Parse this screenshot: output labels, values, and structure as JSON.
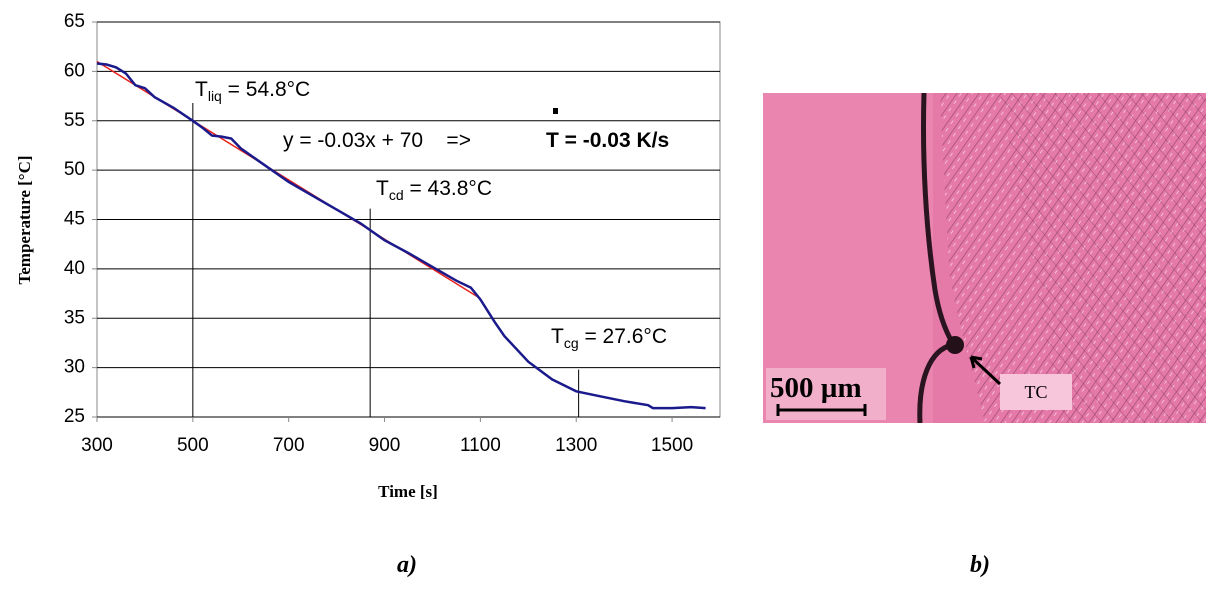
{
  "chart_data": {
    "type": "line",
    "ylabel": "Temperature [°C]",
    "xlabel": "Time [s]",
    "xlim": [
      300,
      1600
    ],
    "xticks": [
      300,
      500,
      700,
      900,
      1100,
      1300,
      1500
    ],
    "ylim": [
      25,
      65
    ],
    "yticks": [
      25,
      30,
      35,
      40,
      45,
      50,
      55,
      60,
      65
    ],
    "grid": true,
    "series": [
      {
        "color": "#1a1a8c",
        "x": [
          300,
          320,
          340,
          360,
          380,
          400,
          420,
          460,
          500,
          520,
          540,
          560,
          580,
          600,
          650,
          700,
          750,
          800,
          850,
          900,
          950,
          1000,
          1050,
          1080,
          1100,
          1130,
          1150,
          1200,
          1250,
          1300,
          1350,
          1400,
          1450,
          1460,
          1500,
          1540,
          1570
        ],
        "values": [
          60.8,
          60.7,
          60.4,
          59.8,
          58.6,
          58.3,
          57.4,
          56.3,
          55.0,
          54.3,
          53.5,
          53.4,
          53.2,
          52.2,
          50.5,
          48.8,
          47.4,
          46.0,
          44.6,
          42.9,
          41.6,
          40.2,
          38.8,
          38.1,
          36.9,
          34.6,
          33.2,
          30.6,
          28.8,
          27.6,
          27.1,
          26.6,
          26.2,
          25.9,
          25.9,
          26.0,
          25.9
        ]
      },
      {
        "color": "#e8201a",
        "x": [
          300,
          1100
        ],
        "values": [
          61,
          37
        ]
      }
    ],
    "vlines": [
      {
        "x": 500,
        "y": 56.8
      },
      {
        "x": 870,
        "y": 46.1
      },
      {
        "x": 1305,
        "y": 29.8
      }
    ],
    "annotations": {
      "liq": {
        "main": "T",
        "sub": "liq",
        "rest": " = 54.8°C"
      },
      "equation": "y = -0.03x + 70    =>",
      "rate": "T = -0.03 K/s",
      "cd": {
        "main": "T",
        "sub": "cd",
        "rest": " = 43.8°C"
      },
      "cg": {
        "main": "T",
        "sub": "cg",
        "rest": " = 27.6°C"
      }
    }
  },
  "image": {
    "scale_bar": "500 µm",
    "label": "TC"
  },
  "captions": {
    "a": "a)",
    "b": "b)"
  }
}
